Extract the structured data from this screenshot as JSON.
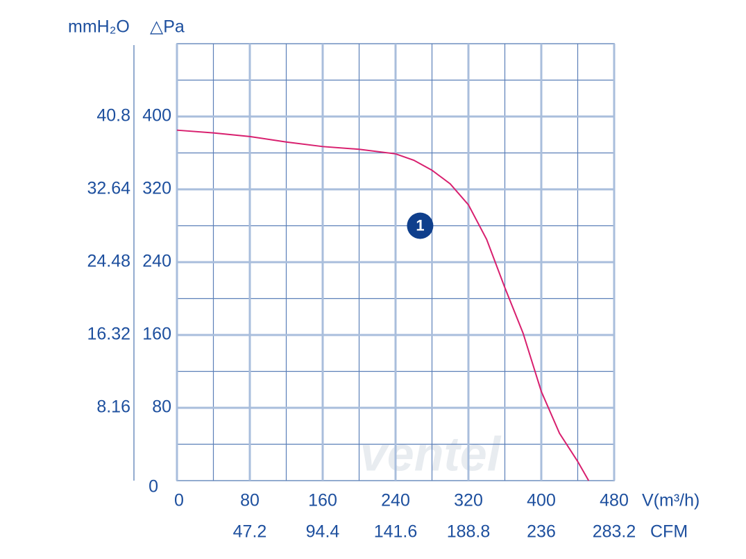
{
  "chart_data": {
    "type": "line",
    "y_label": "mmH₂O",
    "y_label_2": "△Pa",
    "x_label": "V(m³/h)",
    "x2_label": "CFM",
    "watermark": "ventel",
    "x": [
      0,
      40,
      80,
      120,
      160,
      200,
      240,
      260,
      280,
      300,
      320,
      340,
      360,
      380,
      400,
      420,
      440,
      452
    ],
    "series": [
      {
        "name": "1",
        "color": "#d81f6e",
        "values": [
          385,
          382,
          378,
          372,
          367,
          364,
          359,
          352,
          341,
          326,
          303,
          265,
          212,
          162,
          98,
          52,
          21,
          0
        ]
      }
    ],
    "annotations": [
      {
        "text": "1",
        "x": 267,
        "y": 280
      }
    ],
    "xlim": [
      0,
      480
    ],
    "xticks": [
      0,
      80,
      160,
      240,
      320,
      400,
      480
    ],
    "x_minor_ticks": [
      40,
      120,
      200,
      280,
      360,
      440
    ],
    "x2lim": [
      0,
      283.2
    ],
    "x2ticks": [
      47.2,
      94.4,
      141.6,
      188.8,
      236,
      283.2
    ],
    "ylim": [
      0,
      480
    ],
    "yticks": [
      80,
      160,
      240,
      320,
      400
    ],
    "y_minor_ticks": [
      40,
      120,
      200,
      280,
      360,
      440
    ],
    "y2lim": [
      0,
      48.96
    ],
    "y2ticks": [
      0,
      8.16,
      16.32,
      24.48,
      32.64,
      40.8
    ],
    "grid": true
  }
}
